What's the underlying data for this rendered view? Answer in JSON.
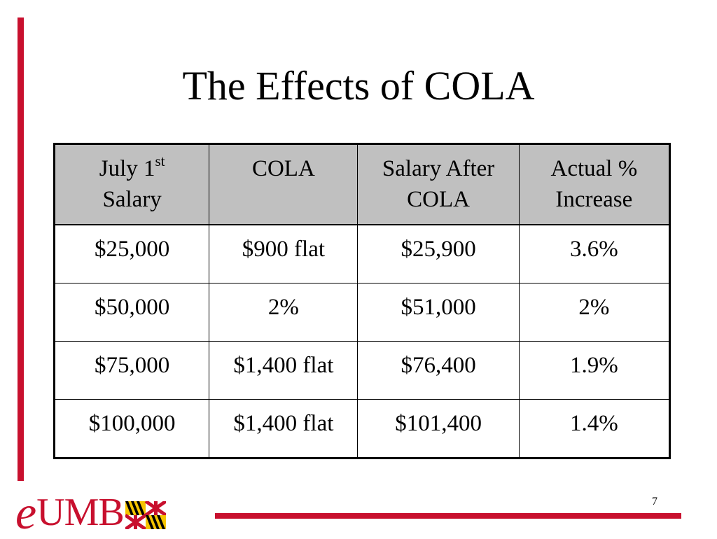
{
  "slide": {
    "title": "The Effects of COLA",
    "page_number": "7"
  },
  "table": {
    "headers": [
      {
        "main": "July 1",
        "sup": "st",
        "line2": "Salary"
      },
      {
        "main": "COLA",
        "sup": "",
        "line2": ""
      },
      {
        "main": "Salary After",
        "sup": "",
        "line2": "COLA"
      },
      {
        "main": "Actual %",
        "sup": "",
        "line2": "Increase"
      }
    ],
    "rows": [
      [
        "$25,000",
        "$900 flat",
        "$25,900",
        "3.6%"
      ],
      [
        "$50,000",
        "2%",
        "$51,000",
        "2%"
      ],
      [
        "$75,000",
        "$1,400 flat",
        "$76,400",
        "1.9%"
      ],
      [
        "$100,000",
        "$1,400 flat",
        "$101,400",
        "1.4%"
      ]
    ]
  },
  "logo": {
    "prefix": "e",
    "name": "UMB",
    "flag_icon": "maryland-flag-icon"
  },
  "colors": {
    "accent": "#c8102e",
    "header_fill": "#c0c0c0",
    "flag_gold": "#f5c400",
    "flag_red": "#c8102e"
  }
}
